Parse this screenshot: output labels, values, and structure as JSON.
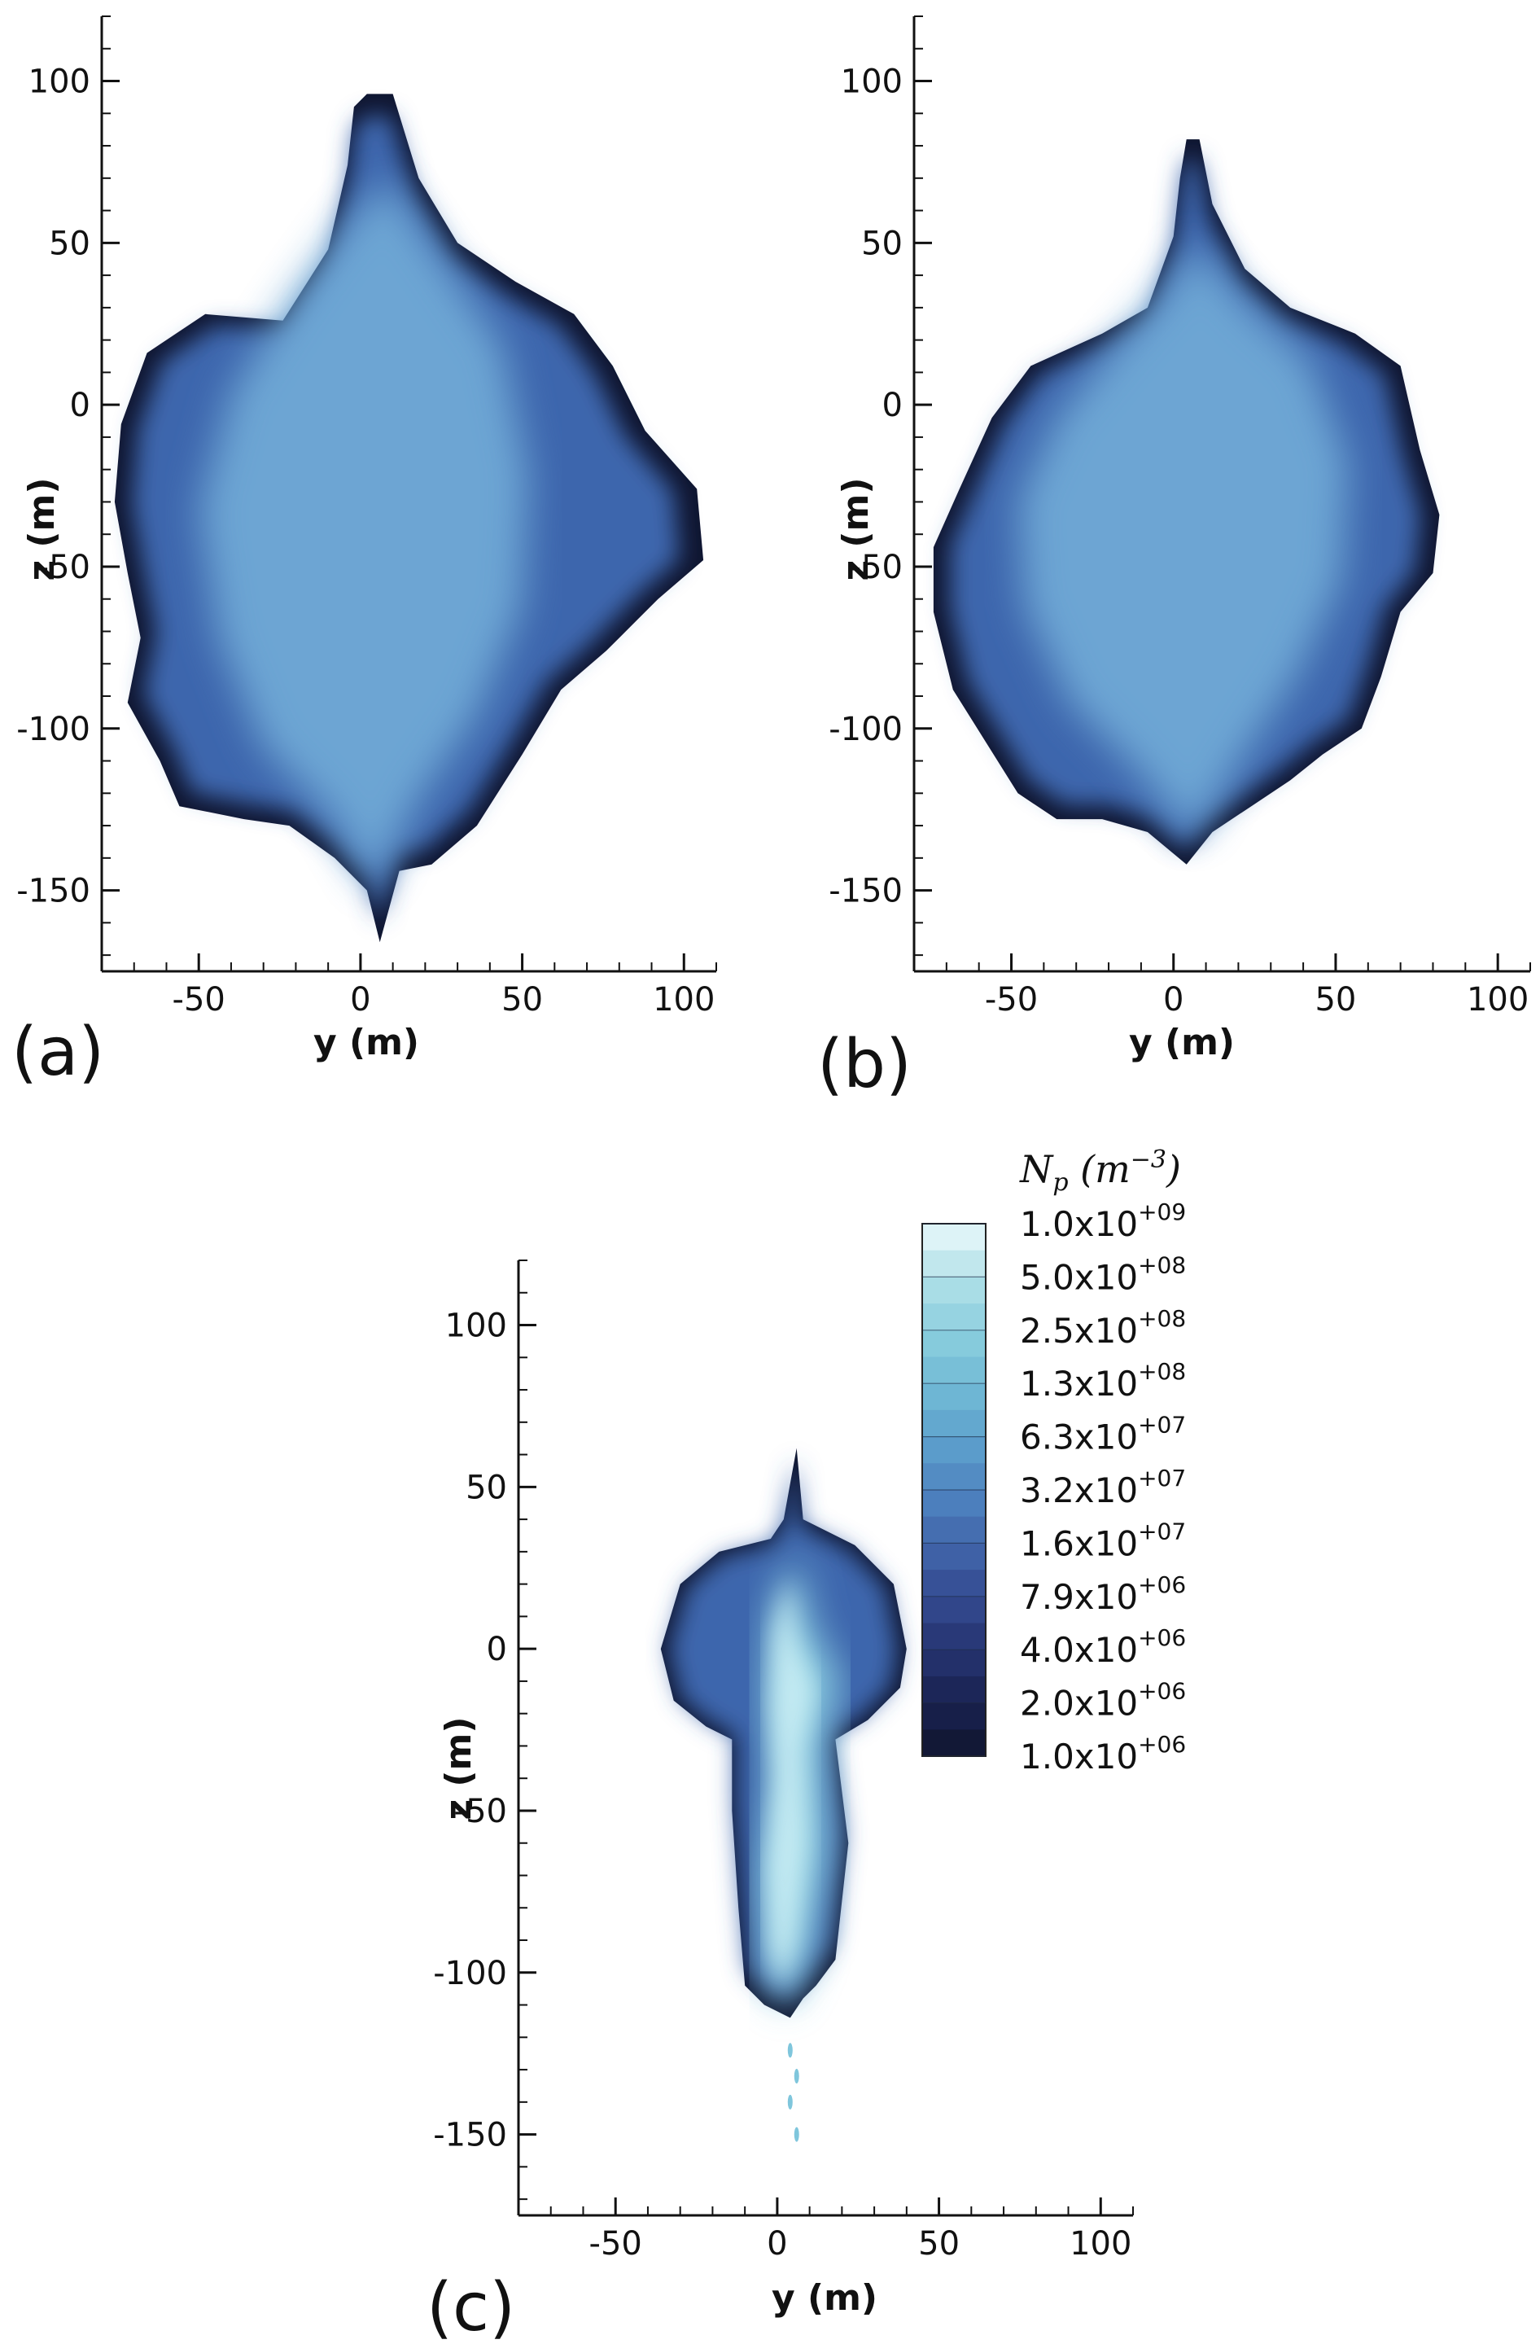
{
  "chart_data": [
    {
      "type": "heatmap",
      "panel_label": "(a)",
      "xlabel": "y (m)",
      "ylabel": "z (m)",
      "xlim": [
        -80,
        110
      ],
      "ylim": [
        -175,
        120
      ],
      "xticks": [
        -50,
        0,
        50,
        100
      ],
      "yticks": [
        -150,
        -100,
        -50,
        0,
        50,
        100
      ],
      "xtick_labels": [
        "-50",
        "0",
        "50",
        "100"
      ],
      "ytick_labels": [
        "-150",
        "-100",
        "-50",
        "0",
        "50",
        "100"
      ],
      "plume_outline": [
        [
          10,
          96
        ],
        [
          18,
          70
        ],
        [
          30,
          50
        ],
        [
          48,
          38
        ],
        [
          66,
          28
        ],
        [
          78,
          12
        ],
        [
          88,
          -8
        ],
        [
          104,
          -26
        ],
        [
          106,
          -48
        ],
        [
          92,
          -60
        ],
        [
          76,
          -76
        ],
        [
          62,
          -88
        ],
        [
          50,
          -108
        ],
        [
          36,
          -130
        ],
        [
          22,
          -142
        ],
        [
          12,
          -144
        ],
        [
          6,
          -166
        ],
        [
          2,
          -150
        ],
        [
          -8,
          -140
        ],
        [
          -22,
          -130
        ],
        [
          -36,
          -128
        ],
        [
          -56,
          -124
        ],
        [
          -62,
          -110
        ],
        [
          -72,
          -92
        ],
        [
          -68,
          -72
        ],
        [
          -72,
          -52
        ],
        [
          -76,
          -30
        ],
        [
          -74,
          -6
        ],
        [
          -66,
          16
        ],
        [
          -48,
          28
        ],
        [
          -24,
          26
        ],
        [
          -10,
          48
        ],
        [
          -4,
          74
        ],
        [
          -2,
          92
        ],
        [
          2,
          96
        ]
      ],
      "core_outline": [
        [
          8,
          70
        ],
        [
          26,
          44
        ],
        [
          44,
          18
        ],
        [
          52,
          -22
        ],
        [
          50,
          -62
        ],
        [
          36,
          -96
        ],
        [
          18,
          -122
        ],
        [
          4,
          -150
        ],
        [
          -10,
          -126
        ],
        [
          -30,
          -106
        ],
        [
          -44,
          -72
        ],
        [
          -50,
          -32
        ],
        [
          -40,
          4
        ],
        [
          -22,
          32
        ],
        [
          -6,
          54
        ]
      ]
    },
    {
      "type": "heatmap",
      "panel_label": "(b)",
      "xlabel": "y (m)",
      "ylabel": "z (m)",
      "xlim": [
        -80,
        110
      ],
      "ylim": [
        -175,
        120
      ],
      "xticks": [
        -50,
        0,
        50,
        100
      ],
      "yticks": [
        -150,
        -100,
        -50,
        0,
        50,
        100
      ],
      "xtick_labels": [
        "-50",
        "0",
        "50",
        "100"
      ],
      "ytick_labels": [
        "-150",
        "-100",
        "-50",
        "0",
        "50",
        "100"
      ],
      "plume_outline": [
        [
          8,
          82
        ],
        [
          12,
          62
        ],
        [
          22,
          42
        ],
        [
          36,
          30
        ],
        [
          56,
          22
        ],
        [
          70,
          12
        ],
        [
          76,
          -14
        ],
        [
          82,
          -34
        ],
        [
          80,
          -52
        ],
        [
          70,
          -64
        ],
        [
          64,
          -84
        ],
        [
          58,
          -100
        ],
        [
          46,
          -108
        ],
        [
          36,
          -116
        ],
        [
          24,
          -124
        ],
        [
          12,
          -132
        ],
        [
          4,
          -142
        ],
        [
          -8,
          -132
        ],
        [
          -22,
          -128
        ],
        [
          -36,
          -128
        ],
        [
          -48,
          -120
        ],
        [
          -58,
          -104
        ],
        [
          -68,
          -88
        ],
        [
          -74,
          -64
        ],
        [
          -74,
          -44
        ],
        [
          -66,
          -26
        ],
        [
          -56,
          -4
        ],
        [
          -44,
          12
        ],
        [
          -22,
          22
        ],
        [
          -8,
          30
        ],
        [
          0,
          52
        ],
        [
          2,
          70
        ],
        [
          4,
          82
        ]
      ],
      "core_outline": [
        [
          6,
          50
        ],
        [
          24,
          30
        ],
        [
          42,
          14
        ],
        [
          54,
          -18
        ],
        [
          52,
          -54
        ],
        [
          38,
          -84
        ],
        [
          22,
          -108
        ],
        [
          6,
          -134
        ],
        [
          -12,
          -112
        ],
        [
          -32,
          -92
        ],
        [
          -46,
          -62
        ],
        [
          -48,
          -30
        ],
        [
          -36,
          -4
        ],
        [
          -18,
          18
        ],
        [
          -2,
          36
        ]
      ]
    },
    {
      "type": "heatmap",
      "panel_label": "(c)",
      "xlabel": "y (m)",
      "ylabel": "z (m)",
      "xlim": [
        -80,
        110
      ],
      "ylim": [
        -175,
        120
      ],
      "xticks": [
        -50,
        0,
        50,
        100
      ],
      "yticks": [
        -150,
        -100,
        -50,
        0,
        50,
        100
      ],
      "xtick_labels": [
        "-50",
        "0",
        "50",
        "100"
      ],
      "ytick_labels": [
        "-150",
        "-100",
        "-50",
        "0",
        "50",
        "100"
      ],
      "plume_outline": [
        [
          6,
          62
        ],
        [
          8,
          40
        ],
        [
          24,
          32
        ],
        [
          36,
          20
        ],
        [
          40,
          0
        ],
        [
          38,
          -12
        ],
        [
          28,
          -22
        ],
        [
          18,
          -28
        ],
        [
          22,
          -60
        ],
        [
          18,
          -96
        ],
        [
          12,
          -104
        ],
        [
          8,
          -108
        ],
        [
          4,
          -114
        ],
        [
          -4,
          -110
        ],
        [
          -10,
          -104
        ],
        [
          -12,
          -80
        ],
        [
          -14,
          -50
        ],
        [
          -14,
          -28
        ],
        [
          -22,
          -24
        ],
        [
          -32,
          -16
        ],
        [
          -36,
          0
        ],
        [
          -30,
          20
        ],
        [
          -18,
          30
        ],
        [
          -2,
          34
        ],
        [
          2,
          40
        ]
      ],
      "core_outline": [
        [
          6,
          30
        ],
        [
          10,
          8
        ],
        [
          20,
          -10
        ],
        [
          14,
          -30
        ],
        [
          16,
          -62
        ],
        [
          10,
          -96
        ],
        [
          2,
          -112
        ],
        [
          -4,
          -98
        ],
        [
          -6,
          -70
        ],
        [
          -2,
          -40
        ],
        [
          -4,
          -14
        ],
        [
          -2,
          10
        ]
      ],
      "debris": [
        [
          4,
          -124
        ],
        [
          6,
          -132
        ],
        [
          4,
          -140
        ],
        [
          6,
          -150
        ]
      ]
    }
  ],
  "colorbar": {
    "title": "N_p (m^-3)",
    "labels": [
      {
        "mantissa": "1.0x10",
        "exponent": "+09"
      },
      {
        "mantissa": "5.0x10",
        "exponent": "+08"
      },
      {
        "mantissa": "2.5x10",
        "exponent": "+08"
      },
      {
        "mantissa": "1.3x10",
        "exponent": "+08"
      },
      {
        "mantissa": "6.3x10",
        "exponent": "+07"
      },
      {
        "mantissa": "3.2x10",
        "exponent": "+07"
      },
      {
        "mantissa": "1.6x10",
        "exponent": "+07"
      },
      {
        "mantissa": "7.9x10",
        "exponent": "+06"
      },
      {
        "mantissa": "4.0x10",
        "exponent": "+06"
      },
      {
        "mantissa": "2.0x10",
        "exponent": "+06"
      },
      {
        "mantissa": "1.0x10",
        "exponent": "+06"
      }
    ],
    "colors": [
      "#ddf3f7",
      "#a9dde6",
      "#86cbdc",
      "#6eb6d4",
      "#5b9ccb",
      "#4c7fbd",
      "#3f61a6",
      "#31468a",
      "#23306a",
      "#171f49",
      "#0e1226"
    ]
  }
}
